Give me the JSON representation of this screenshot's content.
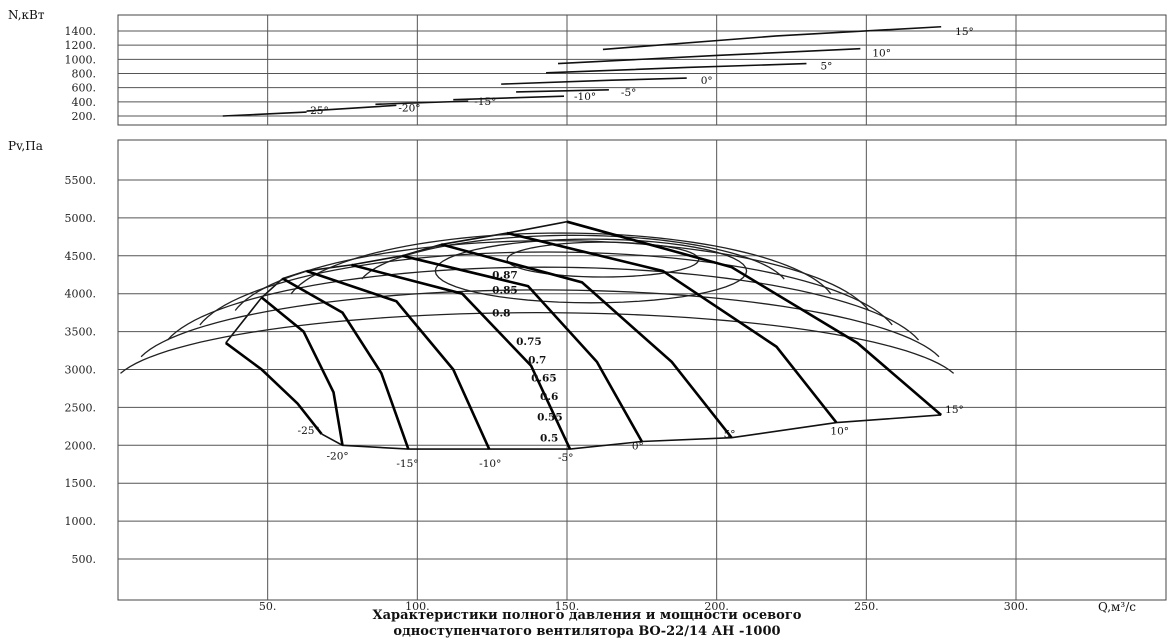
{
  "caption": {
    "line1": "Характеристики полного давления и мощности осевого",
    "line2": "одноступенчатого вентилятора ВО-22/14 АН -1000"
  },
  "chart_data": [
    {
      "type": "line",
      "ylabel": "N,кВт",
      "xlim": [
        0,
        350
      ],
      "ylim": [
        100,
        1500
      ],
      "y_ticks": [
        "200.",
        "400.",
        "600.",
        "800.",
        "1000.",
        "1200.",
        "1400."
      ],
      "grid": true,
      "series": [
        {
          "name": "-25°",
          "x": [
            35,
            63
          ],
          "y": [
            200,
            255
          ]
        },
        {
          "name": "-20°",
          "x": [
            63,
            93
          ],
          "y": [
            270,
            350
          ]
        },
        {
          "name": "-15°",
          "x": [
            86,
            117
          ],
          "y": [
            365,
            410
          ]
        },
        {
          "name": "-10°",
          "x": [
            112,
            149
          ],
          "y": [
            430,
            480
          ]
        },
        {
          "name": "-5°",
          "x": [
            133,
            164
          ],
          "y": [
            540,
            570
          ]
        },
        {
          "name": "0°",
          "x": [
            128,
            165,
            190
          ],
          "y": [
            650,
            705,
            735
          ]
        },
        {
          "name": "5°",
          "x": [
            143,
            190,
            230
          ],
          "y": [
            810,
            885,
            940
          ]
        },
        {
          "name": "10°",
          "x": [
            147,
            200,
            248
          ],
          "y": [
            940,
            1055,
            1150
          ]
        },
        {
          "name": "15°",
          "x": [
            162,
            220,
            275
          ],
          "y": [
            1140,
            1330,
            1460
          ]
        }
      ]
    },
    {
      "type": "line",
      "ylabel": "Pv,Па",
      "xlabel": "Q,м³/с",
      "xlim": [
        0,
        350
      ],
      "ylim": [
        0,
        6000
      ],
      "x_ticks": [
        "50.",
        "100.",
        "150.",
        "200.",
        "250.",
        "300."
      ],
      "y_ticks": [
        "500.",
        "1000.",
        "1500.",
        "2000.",
        "2500.",
        "3000.",
        "3500.",
        "4000.",
        "4500.",
        "5000.",
        "5500."
      ],
      "grid": true,
      "series": [
        {
          "name": "-25°",
          "x": [
            36,
            48,
            60,
            68
          ],
          "y": [
            3350,
            3000,
            2550,
            2150
          ]
        },
        {
          "name": "-20°",
          "x": [
            48,
            62,
            72,
            75
          ],
          "y": [
            3950,
            3500,
            2700,
            2000
          ]
        },
        {
          "name": "-15°",
          "x": [
            55,
            75,
            88,
            97
          ],
          "y": [
            4200,
            3750,
            2950,
            1950
          ]
        },
        {
          "name": "-10°",
          "x": [
            63,
            93,
            112,
            124
          ],
          "y": [
            4300,
            3900,
            3000,
            1950
          ]
        },
        {
          "name": "-5°",
          "x": [
            78,
            115,
            138,
            151
          ],
          "y": [
            4380,
            4000,
            3050,
            1950
          ]
        },
        {
          "name": "0°",
          "x": [
            95,
            137,
            160,
            175
          ],
          "y": [
            4500,
            4100,
            3100,
            2050
          ]
        },
        {
          "name": "5°",
          "x": [
            108,
            155,
            185,
            205
          ],
          "y": [
            4650,
            4150,
            3100,
            2100
          ]
        },
        {
          "name": "10°",
          "x": [
            130,
            182,
            220,
            240
          ],
          "y": [
            4800,
            4300,
            3300,
            2300
          ]
        },
        {
          "name": "15°",
          "x": [
            150,
            205,
            247,
            275
          ],
          "y": [
            4950,
            4350,
            3350,
            2400
          ]
        }
      ],
      "efficiency_labels": [
        "0.87",
        "0.85",
        "0.8",
        "0.75",
        "0.7",
        "0.65",
        "0.6",
        "0.55",
        "0.5"
      ]
    }
  ]
}
